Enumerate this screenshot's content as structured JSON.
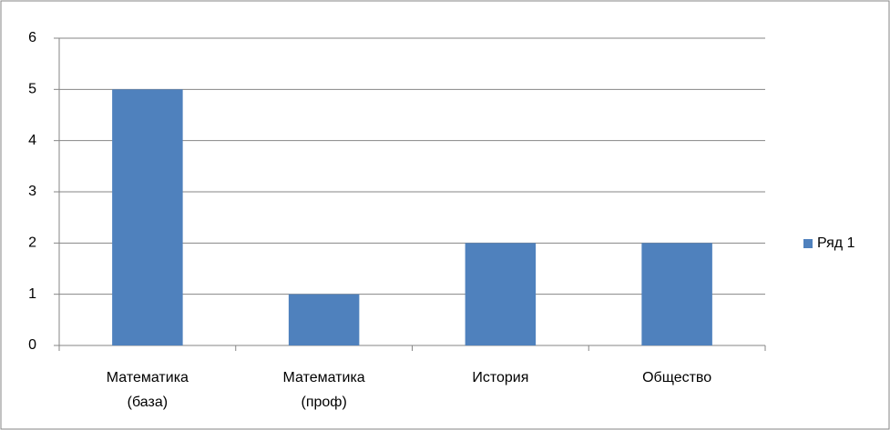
{
  "chart_data": {
    "type": "bar",
    "categories": [
      "Математика (база)",
      "Математика (проф)",
      "История",
      "Общество"
    ],
    "series": [
      {
        "name": "Ряд 1",
        "color": "#4f81bd",
        "values": [
          5,
          1,
          2,
          2
        ]
      }
    ],
    "ylim": [
      0,
      6
    ],
    "yticks": [
      0,
      1,
      2,
      3,
      4,
      5,
      6
    ],
    "grid": true,
    "legend": "right"
  }
}
